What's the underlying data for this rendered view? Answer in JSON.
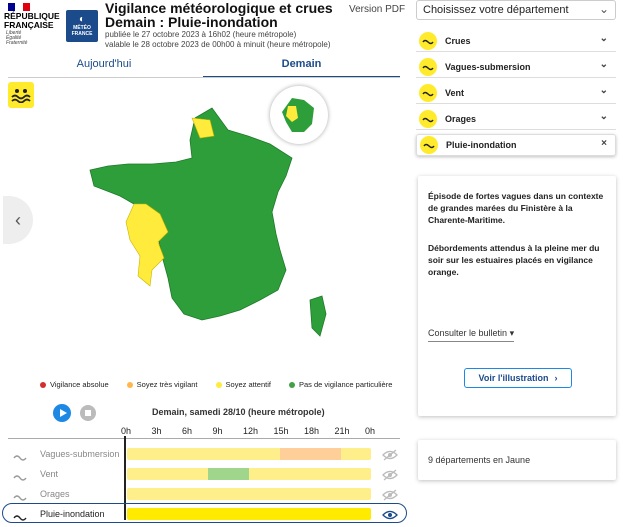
{
  "header": {
    "republic": [
      "RÉPUBLIQUE",
      "FRANÇAISE"
    ],
    "motto": [
      "Liberté",
      "Égalité",
      "Fraternité"
    ],
    "logo_lines": [
      "MÉTÉO",
      "FRANCE"
    ],
    "title_line1": "Vigilance météorologique et crues",
    "title_line2": "Demain : Pluie-inondation",
    "published": "publiée le 27 octobre 2023 à 16h02 (heure métropole)",
    "valid": "valable le 28 octobre 2023 de 00h00 à minuit (heure métropole)",
    "version_pdf": "Version PDF"
  },
  "tabs": {
    "today": "Aujourd'hui",
    "tomorrow": "Demain",
    "active": "tomorrow"
  },
  "legend": [
    {
      "label": "Vigilance absolue",
      "color": "#d32f2f"
    },
    {
      "label": "Soyez très vigilant",
      "color": "#ffb74d"
    },
    {
      "label": "Soyez attentif",
      "color": "#ffeb3b"
    },
    {
      "label": "Pas de vigilance particulière",
      "color": "#43a047"
    }
  ],
  "colors": {
    "green": "#2e9e3a",
    "yellow": "#ffeb3b",
    "orange": "#ffb74d",
    "navy": "#1b4b8a"
  },
  "timeline": {
    "date_label": "Demain, samedi 28/10 (heure métropole)",
    "hours": [
      "0h",
      "3h",
      "6h",
      "9h",
      "12h",
      "15h",
      "18h",
      "21h",
      "0h"
    ],
    "rows": [
      {
        "name": "Vagues-submersion",
        "icon": "waves-icon",
        "active": false,
        "segments": [
          {
            "from": 15,
            "to": 21,
            "level": "orange"
          }
        ]
      },
      {
        "name": "Vent",
        "icon": "wind-icon",
        "active": false,
        "segments": [
          {
            "from": 8,
            "to": 12,
            "level": "green"
          }
        ]
      },
      {
        "name": "Orages",
        "icon": "storm-icon",
        "active": false,
        "segments": []
      },
      {
        "name": "Pluie-inondation",
        "icon": "flood-icon",
        "active": true,
        "segments": []
      }
    ]
  },
  "right": {
    "select_placeholder": "Choisissez votre département",
    "accordion": [
      {
        "label": "Crues",
        "icon": "crues-icon",
        "control": "⌄"
      },
      {
        "label": "Vagues-submersion",
        "icon": "waves-icon",
        "control": "⌄"
      },
      {
        "label": "Vent",
        "icon": "wind-icon",
        "control": "⌄"
      },
      {
        "label": "Orages",
        "icon": "storm-icon",
        "control": "⌄"
      },
      {
        "label": "Pluie-inondation",
        "icon": "flood-icon",
        "control": "×"
      }
    ],
    "info_p1": "Épisode de fortes vagues dans un contexte de grandes marées du Finistère à la Charente-Maritime.",
    "info_p2": "Débordements attendus à la pleine mer du soir sur les estuaires placés en vigilance orange.",
    "bulletin": "Consulter le bulletin",
    "illustration": "Voir l'illustration",
    "summary": "9 départements en Jaune"
  }
}
